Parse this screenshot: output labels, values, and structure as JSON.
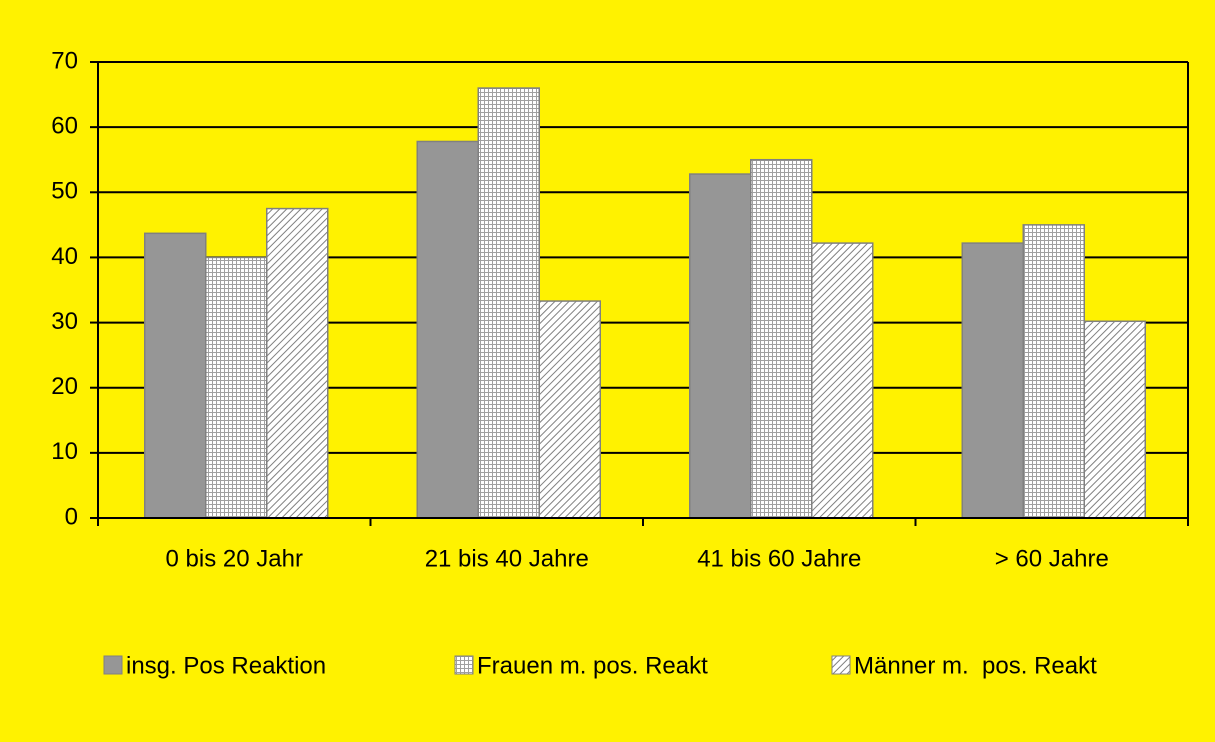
{
  "chart_data": {
    "type": "bar",
    "categories": [
      "0 bis 20 Jahr",
      "21 bis 40 Jahre",
      "41 bis 60 Jahre",
      "> 60 Jahre"
    ],
    "series": [
      {
        "name": "insg. Pos Reaktion",
        "color": "#969696",
        "pattern": "solid",
        "values": [
          43.7,
          57.8,
          52.8,
          42.2
        ]
      },
      {
        "name": "Frauen m. pos. Reakt",
        "color": "#969696",
        "pattern": "grid",
        "values": [
          40,
          66,
          55,
          45
        ]
      },
      {
        "name": "Männer m.  pos. Reakt",
        "color": "#969696",
        "pattern": "diagonal",
        "values": [
          47.5,
          33.3,
          42.2,
          30.2
        ]
      }
    ],
    "ylim": [
      0,
      70
    ],
    "yticks": [
      0,
      10,
      20,
      30,
      40,
      50,
      60,
      70
    ],
    "grid": true,
    "background": "#fff200",
    "legend": "bottom"
  }
}
